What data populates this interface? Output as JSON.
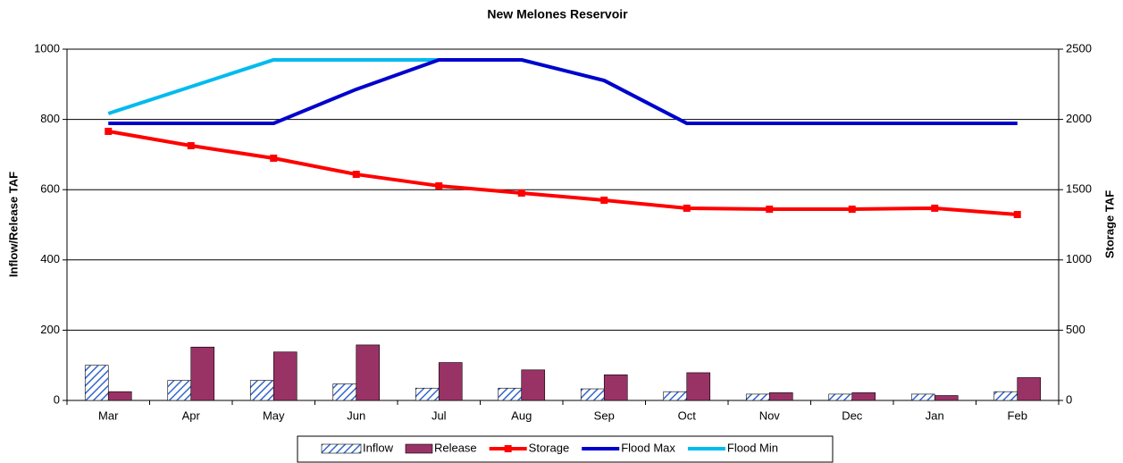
{
  "chart_data": {
    "type": "combo",
    "title": "New Melones Reservoir",
    "y_label": "Inflow/Release TAF",
    "y2_label": "Storage TAF",
    "categories": [
      "Mar",
      "Apr",
      "May",
      "Jun",
      "Jul",
      "Aug",
      "Sep",
      "Oct",
      "Nov",
      "Dec",
      "Jan",
      "Feb"
    ],
    "ylim": [
      0,
      1000
    ],
    "yticks": [
      0,
      200,
      400,
      600,
      800,
      1000
    ],
    "y2lim": [
      0,
      2500
    ],
    "y2ticks": [
      0,
      500,
      1000,
      1500,
      2000,
      2500
    ],
    "grid": true,
    "legend": "bottom",
    "series": [
      {
        "name": "Inflow",
        "type": "bar",
        "color": "#3366cc",
        "pattern": "hatch",
        "values": [
          100,
          57,
          57,
          47,
          35,
          35,
          33,
          25,
          18,
          18,
          18,
          25
        ]
      },
      {
        "name": "Release",
        "type": "bar",
        "color": "#993366",
        "values": [
          25,
          152,
          138,
          158,
          108,
          87,
          73,
          79,
          22,
          22,
          14,
          65
        ]
      },
      {
        "name": "Storage",
        "type": "line",
        "axis": "y2",
        "color": "#ff0000",
        "marker": "square",
        "values": [
          1915,
          1813,
          1724,
          1609,
          1527,
          1476,
          1425,
          1368,
          1361,
          1361,
          1368,
          1323
        ]
      },
      {
        "name": "Flood Max",
        "type": "line",
        "axis": "y2",
        "color": "#0000cc",
        "values": [
          1972,
          1972,
          1972,
          2214,
          2424,
          2424,
          2277,
          1972,
          1972,
          1972,
          1972,
          1972
        ]
      },
      {
        "name": "Flood Min",
        "type": "line",
        "axis": "y2",
        "color": "#00bbee",
        "values": [
          2042,
          2233,
          2424,
          2424,
          2424,
          2424,
          2277,
          1972,
          1972,
          1972,
          1972,
          1972
        ]
      }
    ]
  }
}
